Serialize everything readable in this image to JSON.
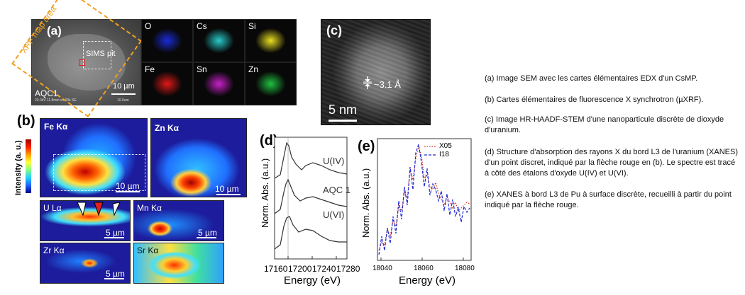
{
  "panel_a": {
    "letter": "(a)",
    "xrf_label": "XRF map area",
    "sims_label": "SIMS pit",
    "sample": "AQC1",
    "scale": "10 µm",
    "meta": "20.0kV 11.8mm x4.00k SE",
    "meta_right": "10.0um",
    "edx_maps": [
      {
        "label": "O",
        "color": "#1a2bd6"
      },
      {
        "label": "Cs",
        "color": "#28c9c9"
      },
      {
        "label": "Si",
        "color": "#e8e020"
      },
      {
        "label": "Fe",
        "color": "#e01818"
      },
      {
        "label": "Sn",
        "color": "#c820c8"
      },
      {
        "label": "Zn",
        "color": "#20c040"
      }
    ]
  },
  "panel_b": {
    "letter": "(b)",
    "colorbar_label": "Intensity (a. u.)",
    "maps": [
      {
        "label": "Fe Kα",
        "scale": "10 µm"
      },
      {
        "label": "Zn Kα",
        "scale": "10 µm"
      },
      {
        "label": "U Lα",
        "scale": "5 µm"
      },
      {
        "label": "Mn Kα",
        "scale": "5 µm"
      },
      {
        "label": "Zr Kα",
        "scale": "5 µm"
      },
      {
        "label": "Sr Kα",
        "scale": ""
      }
    ]
  },
  "panel_c": {
    "letter": "(c)",
    "spacing": "~3.1 Å",
    "scale": "5 nm"
  },
  "panel_d": {
    "letter": "(d)",
    "ylabel": "Norm. Abs. (a.u.)",
    "xlabel": "Energy (eV)",
    "ticks": [
      "17160",
      "17200",
      "17240",
      "17280"
    ],
    "spectra": [
      "U(IV)",
      "AQC 1",
      "U(VI)"
    ]
  },
  "panel_e": {
    "letter": "(e)",
    "ylabel": "Norm. Abs. (a.u.)",
    "xlabel": "Energy (eV)",
    "ticks": [
      "18040",
      "18060",
      "18080"
    ],
    "legend": [
      {
        "name": "X05",
        "color": "#d9302a",
        "style": "dotted"
      },
      {
        "name": "I18",
        "color": "#1f2bd1",
        "style": "dashed"
      }
    ]
  },
  "captions": [
    "(a) Image SEM avec les cartes élémentaires EDX d'un CsMP.",
    "(b) Cartes élémentaires de fluorescence X synchrotron (µXRF).",
    "(c) Image HR-HAADF-STEM d'une nanoparticule discrète de dioxyde d'uranium.",
    "(d) Structure d'absorption des rayons X du bord L3 de l'uranium (XANES) d'un point discret, indiqué par la flèche rouge en (b). Le spectre est tracé à côté des étalons d'oxyde U(IV) et U(VI).",
    "(e) XANES à bord L3 de Pu à surface discrète, recueilli à partir du point indiqué par la flèche rouge."
  ]
}
